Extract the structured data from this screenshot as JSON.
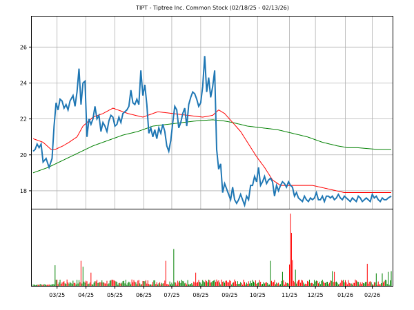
{
  "chart_data": [
    {
      "type": "line",
      "title": "TIPT - Tiptree Inc. Common Stock (02/18/25 - 02/13/26)",
      "ylim": [
        17.0,
        27.7
      ],
      "y_ticks": [
        18,
        20,
        22,
        24,
        26
      ],
      "x_tick_labels": [
        "03/25",
        "04/25",
        "05/25",
        "06/25",
        "07/25",
        "08/25",
        "09/25",
        "10/25",
        "11/25",
        "12/25",
        "01/26",
        "02/26"
      ],
      "x_tick_index": [
        24,
        53,
        82,
        111,
        139,
        168,
        197,
        225,
        257,
        283,
        313,
        340
      ],
      "grid": true,
      "n_points": 360,
      "series": [
        {
          "color": "#1f77b4",
          "keypoints": [
            [
              0,
              20.2
            ],
            [
              2,
              20.3
            ],
            [
              4,
              20.6
            ],
            [
              6,
              20.4
            ],
            [
              8,
              20.6
            ],
            [
              10,
              19.6
            ],
            [
              13,
              19.8
            ],
            [
              16,
              19.3
            ],
            [
              19,
              19.8
            ],
            [
              21,
              21.6
            ],
            [
              23,
              22.9
            ],
            [
              25,
              22.5
            ],
            [
              27,
              23.1
            ],
            [
              29,
              23.0
            ],
            [
              31,
              22.6
            ],
            [
              33,
              22.8
            ],
            [
              35,
              22.5
            ],
            [
              37,
              23.0
            ],
            [
              40,
              23.3
            ],
            [
              42,
              22.7
            ],
            [
              44,
              23.5
            ],
            [
              46,
              24.8
            ],
            [
              48,
              22.8
            ],
            [
              50,
              24.0
            ],
            [
              52,
              24.1
            ],
            [
              54,
              21.0
            ],
            [
              56,
              22.0
            ],
            [
              58,
              21.7
            ],
            [
              60,
              22.0
            ],
            [
              62,
              22.7
            ],
            [
              64,
              22.0
            ],
            [
              66,
              22.2
            ],
            [
              68,
              21.3
            ],
            [
              70,
              21.8
            ],
            [
              72,
              21.6
            ],
            [
              74,
              21.3
            ],
            [
              76,
              21.9
            ],
            [
              78,
              22.2
            ],
            [
              80,
              22.1
            ],
            [
              82,
              21.6
            ],
            [
              84,
              21.7
            ],
            [
              86,
              22.1
            ],
            [
              88,
              21.8
            ],
            [
              90,
              22.3
            ],
            [
              92,
              22.4
            ],
            [
              94,
              22.5
            ],
            [
              96,
              22.7
            ],
            [
              98,
              23.6
            ],
            [
              100,
              22.9
            ],
            [
              102,
              22.8
            ],
            [
              104,
              23.1
            ],
            [
              106,
              22.8
            ],
            [
              108,
              24.7
            ],
            [
              110,
              23.3
            ],
            [
              112,
              23.9
            ],
            [
              114,
              22.8
            ],
            [
              116,
              21.2
            ],
            [
              118,
              21.5
            ],
            [
              120,
              21.0
            ],
            [
              122,
              21.4
            ],
            [
              124,
              20.9
            ],
            [
              126,
              21.5
            ],
            [
              128,
              21.2
            ],
            [
              130,
              21.7
            ],
            [
              132,
              21.3
            ],
            [
              134,
              20.5
            ],
            [
              136,
              20.2
            ],
            [
              138,
              20.8
            ],
            [
              140,
              21.8
            ],
            [
              142,
              22.7
            ],
            [
              144,
              22.5
            ],
            [
              146,
              21.5
            ],
            [
              148,
              21.8
            ],
            [
              150,
              22.3
            ],
            [
              152,
              22.6
            ],
            [
              154,
              21.6
            ],
            [
              156,
              22.8
            ],
            [
              158,
              23.2
            ],
            [
              160,
              23.5
            ],
            [
              162,
              23.4
            ],
            [
              164,
              23.1
            ],
            [
              166,
              22.7
            ],
            [
              168,
              22.9
            ],
            [
              170,
              23.8
            ],
            [
              172,
              25.5
            ],
            [
              174,
              23.5
            ],
            [
              176,
              24.3
            ],
            [
              178,
              23.2
            ],
            [
              180,
              23.8
            ],
            [
              182,
              24.7
            ],
            [
              184,
              20.3
            ],
            [
              186,
              19.2
            ],
            [
              188,
              19.5
            ],
            [
              190,
              17.9
            ],
            [
              192,
              18.4
            ],
            [
              194,
              18.1
            ],
            [
              196,
              17.8
            ],
            [
              198,
              17.5
            ],
            [
              200,
              18.2
            ],
            [
              202,
              17.5
            ],
            [
              204,
              17.3
            ],
            [
              206,
              17.5
            ],
            [
              208,
              17.8
            ],
            [
              210,
              17.5
            ],
            [
              212,
              17.2
            ],
            [
              214,
              17.7
            ],
            [
              216,
              17.5
            ],
            [
              218,
              18.3
            ],
            [
              220,
              18.3
            ],
            [
              222,
              18.8
            ],
            [
              224,
              18.5
            ],
            [
              226,
              19.3
            ],
            [
              228,
              18.3
            ],
            [
              230,
              18.5
            ],
            [
              232,
              18.8
            ],
            [
              234,
              18.4
            ],
            [
              236,
              18.6
            ],
            [
              238,
              18.7
            ],
            [
              240,
              18.5
            ],
            [
              242,
              17.7
            ],
            [
              244,
              18.3
            ],
            [
              246,
              18.0
            ],
            [
              248,
              18.3
            ],
            [
              250,
              18.5
            ],
            [
              252,
              18.4
            ],
            [
              254,
              18.2
            ],
            [
              256,
              18.5
            ],
            [
              258,
              18.3
            ],
            [
              260,
              18.2
            ],
            [
              262,
              17.7
            ],
            [
              264,
              17.9
            ],
            [
              266,
              17.6
            ],
            [
              268,
              17.5
            ],
            [
              270,
              17.4
            ],
            [
              272,
              17.7
            ],
            [
              274,
              17.5
            ],
            [
              276,
              17.4
            ],
            [
              278,
              17.6
            ],
            [
              280,
              17.5
            ],
            [
              282,
              17.6
            ],
            [
              284,
              17.9
            ],
            [
              286,
              17.5
            ],
            [
              288,
              17.5
            ],
            [
              290,
              17.7
            ],
            [
              292,
              17.4
            ],
            [
              294,
              17.7
            ],
            [
              296,
              17.7
            ],
            [
              298,
              17.6
            ],
            [
              300,
              17.7
            ],
            [
              302,
              17.5
            ],
            [
              304,
              17.6
            ],
            [
              306,
              17.8
            ],
            [
              308,
              17.6
            ],
            [
              310,
              17.5
            ],
            [
              312,
              17.7
            ],
            [
              314,
              17.6
            ],
            [
              316,
              17.5
            ],
            [
              318,
              17.4
            ],
            [
              320,
              17.6
            ],
            [
              322,
              17.5
            ],
            [
              324,
              17.4
            ],
            [
              326,
              17.7
            ],
            [
              328,
              17.6
            ],
            [
              330,
              17.4
            ],
            [
              332,
              17.5
            ],
            [
              334,
              17.6
            ],
            [
              336,
              17.5
            ],
            [
              338,
              17.4
            ],
            [
              340,
              17.8
            ],
            [
              342,
              17.6
            ],
            [
              344,
              17.7
            ],
            [
              346,
              17.5
            ],
            [
              348,
              17.4
            ],
            [
              350,
              17.6
            ],
            [
              352,
              17.5
            ],
            [
              354,
              17.5
            ],
            [
              356,
              17.6
            ],
            [
              359,
              17.7
            ]
          ]
        },
        {
          "color": "#ff0000",
          "keypoints": [
            [
              0,
              20.9
            ],
            [
              10,
              20.7
            ],
            [
              18,
              20.3
            ],
            [
              22,
              20.3
            ],
            [
              30,
              20.5
            ],
            [
              36,
              20.7
            ],
            [
              44,
              21.0
            ],
            [
              50,
              21.6
            ],
            [
              60,
              22.1
            ],
            [
              70,
              22.3
            ],
            [
              80,
              22.6
            ],
            [
              95,
              22.3
            ],
            [
              110,
              22.1
            ],
            [
              125,
              22.4
            ],
            [
              140,
              22.3
            ],
            [
              155,
              22.2
            ],
            [
              170,
              22.1
            ],
            [
              180,
              22.2
            ],
            [
              186,
              22.5
            ],
            [
              192,
              22.3
            ],
            [
              200,
              21.8
            ],
            [
              208,
              21.3
            ],
            [
              216,
              20.6
            ],
            [
              224,
              19.9
            ],
            [
              232,
              19.3
            ],
            [
              240,
              18.6
            ],
            [
              248,
              18.3
            ],
            [
              256,
              18.3
            ],
            [
              264,
              18.3
            ],
            [
              272,
              18.3
            ],
            [
              280,
              18.3
            ],
            [
              288,
              18.2
            ],
            [
              296,
              18.1
            ],
            [
              304,
              18.0
            ],
            [
              312,
              17.9
            ],
            [
              320,
              17.9
            ],
            [
              330,
              17.9
            ],
            [
              340,
              17.9
            ],
            [
              350,
              17.9
            ],
            [
              359,
              17.9
            ]
          ]
        },
        {
          "color": "#008000",
          "keypoints": [
            [
              0,
              19.0
            ],
            [
              15,
              19.3
            ],
            [
              30,
              19.7
            ],
            [
              45,
              20.1
            ],
            [
              60,
              20.5
            ],
            [
              75,
              20.8
            ],
            [
              90,
              21.1
            ],
            [
              105,
              21.3
            ],
            [
              120,
              21.6
            ],
            [
              135,
              21.7
            ],
            [
              150,
              21.8
            ],
            [
              165,
              21.9
            ],
            [
              180,
              21.95
            ],
            [
              190,
              21.9
            ],
            [
              200,
              21.8
            ],
            [
              215,
              21.6
            ],
            [
              230,
              21.5
            ],
            [
              245,
              21.4
            ],
            [
              260,
              21.2
            ],
            [
              275,
              21.0
            ],
            [
              290,
              20.7
            ],
            [
              305,
              20.5
            ],
            [
              315,
              20.4
            ],
            [
              325,
              20.4
            ],
            [
              335,
              20.35
            ],
            [
              345,
              20.3
            ],
            [
              359,
              20.3
            ]
          ]
        }
      ]
    },
    {
      "type": "bar",
      "title": "",
      "n_points": 360,
      "up_color": "#008000",
      "down_color": "#ff0000",
      "spikes": [
        [
          22,
          0.28
        ],
        [
          48,
          0.34
        ],
        [
          50,
          0.26
        ],
        [
          58,
          0.18
        ],
        [
          133,
          0.34
        ],
        [
          141,
          0.5
        ],
        [
          163,
          0.18
        ],
        [
          238,
          0.34
        ],
        [
          250,
          0.19
        ],
        [
          257,
          0.29
        ],
        [
          258,
          0.98
        ],
        [
          259,
          0.72
        ],
        [
          260,
          0.35
        ],
        [
          263,
          0.22
        ],
        [
          300,
          0.2
        ],
        [
          302,
          0.19
        ],
        [
          335,
          0.3
        ],
        [
          344,
          0.17
        ],
        [
          350,
          0.17
        ],
        [
          356,
          0.19
        ],
        [
          359,
          0.2
        ]
      ],
      "base_level": 0.06,
      "max_level": 1.0
    }
  ]
}
